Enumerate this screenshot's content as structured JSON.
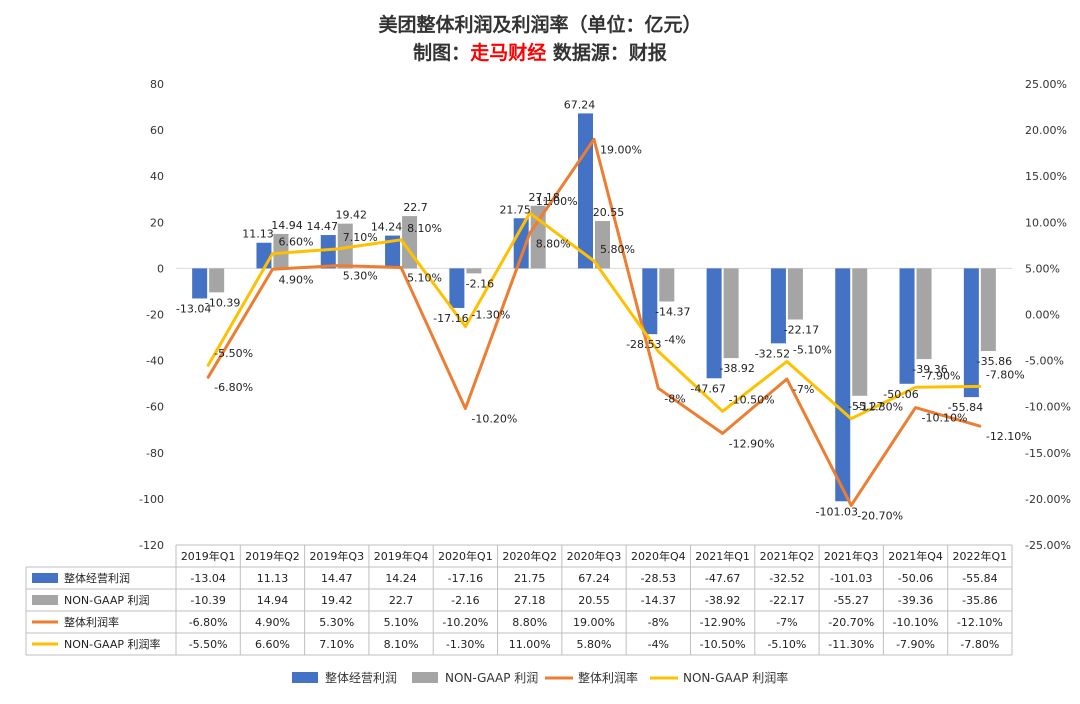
{
  "title": {
    "line1": "美团整体利润及利润率（单位：亿元）",
    "line2_prefix": "制图：",
    "line2_brand": "走马财经",
    "line2_suffix": " 数据源：财报"
  },
  "colors": {
    "op_profit": "#4472C4",
    "nongaap_profit": "#A5A5A5",
    "margin": "#ED7D31",
    "nongaap_margin": "#FFC000",
    "brand": "#FF0000"
  },
  "chart_data": {
    "type": "bar",
    "categories": [
      "2019年Q1",
      "2019年Q2",
      "2019年Q3",
      "2019年Q4",
      "2020年Q1",
      "2020年Q2",
      "2020年Q3",
      "2020年Q4",
      "2021年Q1",
      "2021年Q2",
      "2021年Q3",
      "2021年Q4",
      "2022年Q1"
    ],
    "ylim": [
      -120,
      80
    ],
    "y_ticks": [
      80,
      60,
      40,
      20,
      0,
      -20,
      -40,
      -60,
      -80,
      -100,
      -120
    ],
    "y2lim": [
      -25,
      25
    ],
    "y2_ticks": [
      "25.00%",
      "20.00%",
      "15.00%",
      "10.00%",
      "5.00%",
      "0.00%",
      "-5.00%",
      "-10.00%",
      "-15.00%",
      "-20.00%",
      "-25.00%"
    ],
    "series": [
      {
        "name": "整体经营利润",
        "kind": "bar",
        "values": [
          -13.04,
          11.13,
          14.47,
          14.24,
          -17.16,
          21.75,
          67.24,
          -28.53,
          -47.67,
          -32.52,
          -101.03,
          -50.06,
          -55.84
        ],
        "labels": [
          "-13.04",
          "11.13",
          "14.47",
          "14.24",
          "-17.16",
          "21.75",
          "67.24",
          "-28.53",
          "-47.67",
          "-32.52",
          "-101.03",
          "-50.06",
          "-55.84"
        ]
      },
      {
        "name": "NON-GAAP 利润",
        "kind": "bar",
        "values": [
          -10.39,
          14.94,
          19.42,
          22.7,
          -2.16,
          27.18,
          20.55,
          -14.37,
          -38.92,
          -22.17,
          -55.27,
          -39.36,
          -35.86
        ],
        "labels": [
          "-10.39",
          "14.94",
          "19.42",
          "22.7",
          "-2.16",
          "27.18",
          "20.55",
          "-14.37",
          "-38.92",
          "-22.17",
          "-55.27",
          "-39.36",
          "-35.86"
        ]
      },
      {
        "name": "整体利润率",
        "kind": "line",
        "axis": "right",
        "values": [
          -6.8,
          4.9,
          5.3,
          5.1,
          -10.2,
          8.8,
          19.0,
          -8.0,
          -12.9,
          -7.0,
          -20.7,
          -10.1,
          -12.1
        ],
        "labels": [
          "-6.80%",
          "4.90%",
          "5.30%",
          "5.10%",
          "-10.20%",
          "8.80%",
          "19.00%",
          "-8%",
          "-12.90%",
          "-7%",
          "-20.70%",
          "-10.10%",
          "-12.10%"
        ]
      },
      {
        "name": "NON-GAAP 利润率",
        "kind": "line",
        "axis": "right",
        "values": [
          -5.5,
          6.6,
          7.1,
          8.1,
          -1.3,
          11.0,
          5.8,
          -4.0,
          -10.5,
          -5.1,
          -11.3,
          -7.9,
          -7.8
        ],
        "labels": [
          "-5.50%",
          "6.60%",
          "7.10%",
          "8.10%",
          "-1.30%",
          "11.00%",
          "5.80%",
          "-4%",
          "-10.50%",
          "-5.10%",
          "-11.30%",
          "-7.90%",
          "-7.80%"
        ]
      }
    ],
    "legend_position": "bottom",
    "data_table": true,
    "grid": false
  }
}
